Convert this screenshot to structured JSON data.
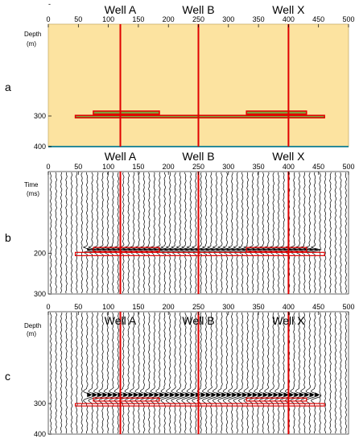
{
  "figure": {
    "top_mark": "-",
    "x_axis": {
      "min": 0,
      "max": 500,
      "ticks": [
        0,
        50,
        100,
        150,
        200,
        250,
        300,
        350,
        400,
        450,
        500
      ]
    },
    "wells": [
      {
        "label": "Well A",
        "x": 120
      },
      {
        "label": "Well B",
        "x": 250
      },
      {
        "label": "Well X",
        "x": 400
      }
    ],
    "colors": {
      "model_fill": "#fce3a0",
      "layer_fill": "#7fa43c",
      "well_line": "#e00000",
      "layer_outline": "#e00000",
      "trace": "#000000",
      "base_line": "#2a8a98"
    },
    "layers": [
      {
        "name": "upper-left",
        "x": [
          75,
          185
        ],
        "top": 284,
        "bottom": 294
      },
      {
        "name": "upper-right",
        "x": [
          330,
          430
        ],
        "top": 284,
        "bottom": 294
      },
      {
        "name": "lower",
        "x": [
          45,
          460
        ],
        "top": 298,
        "bottom": 306
      }
    ],
    "panels": [
      {
        "id": "a",
        "letter": "a",
        "ylabel": "Depth",
        "yunit": "(m)",
        "ymin": 0,
        "ymax": 400,
        "yticks": [
          300,
          400
        ],
        "type": "model"
      },
      {
        "id": "b",
        "letter": "b",
        "ylabel": "Time",
        "yunit": "(ms)",
        "ymin": 0,
        "ymax": 300,
        "yticks": [
          200,
          300
        ],
        "type": "seismic",
        "events": [
          {
            "top": 182,
            "bottom": 202
          }
        ],
        "boxes": [
          {
            "x": [
              75,
              185
            ],
            "top": 186,
            "bottom": 196
          },
          {
            "x": [
              330,
              430
            ],
            "top": 186,
            "bottom": 196
          },
          {
            "x": [
              45,
              460
            ],
            "top": 198,
            "bottom": 206
          }
        ]
      },
      {
        "id": "c",
        "letter": "c",
        "ylabel": "Depth",
        "yunit": "(m)",
        "ymin": 0,
        "ymax": 400,
        "yticks": [
          300,
          400
        ],
        "type": "seismic",
        "events": [
          {
            "top": 250,
            "bottom": 300
          }
        ],
        "boxes": [
          {
            "x": [
              75,
              185
            ],
            "top": 282,
            "bottom": 292
          },
          {
            "x": [
              330,
              430
            ],
            "top": 282,
            "bottom": 292
          },
          {
            "x": [
              45,
              460
            ],
            "top": 300,
            "bottom": 308
          }
        ]
      }
    ]
  }
}
